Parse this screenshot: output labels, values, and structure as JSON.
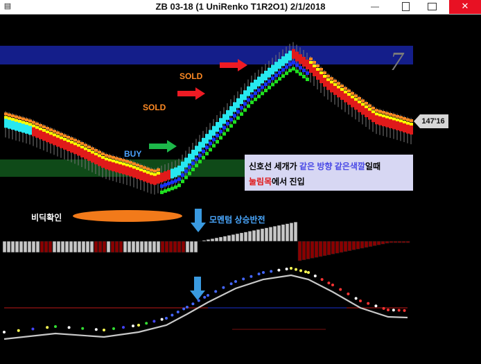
{
  "window": {
    "title": "ZB 03-18 (1 UniRenko T1R2O1)  2/1/2018",
    "app_icon": "chart-app-icon",
    "buttons": {
      "minimize": "—",
      "close": "✕"
    }
  },
  "labels": {
    "sold_upper": "SOLD",
    "sold_lower": "SOLD",
    "buy": "BUY",
    "renko_brick": "7",
    "price_tag": "147'16",
    "note_line1_a": "신호선 세개가 ",
    "note_line1_b": "같은 방향 같은색깔",
    "note_line1_c": "일때",
    "note_line2_a": "눌림목",
    "note_line2_b": "에서 진입",
    "confirm": "비딕확인",
    "momentum": "모멘텀 상승반전"
  },
  "colors": {
    "bull_candle": "#27e8f0",
    "bear_candle": "#e01a1a",
    "up_band": "#1fe01f",
    "down_band_red": "#ff2020",
    "yellow_line": "#ffff00",
    "orange_line": "#ff8a24",
    "blue_line": "#1830ff",
    "histogram_up": "#c8c8c8",
    "histogram_down": "#8b0000",
    "arrow_green": "#1db84a",
    "arrow_red": "#ee1b24",
    "arrow_blue": "#3a9ae0",
    "zone_blue": "#141e8a",
    "zone_green": "#0f4a18"
  },
  "icons": [
    "buy-arrow-icon",
    "sell-arrow-icon",
    "down-arrow-icon"
  ]
}
